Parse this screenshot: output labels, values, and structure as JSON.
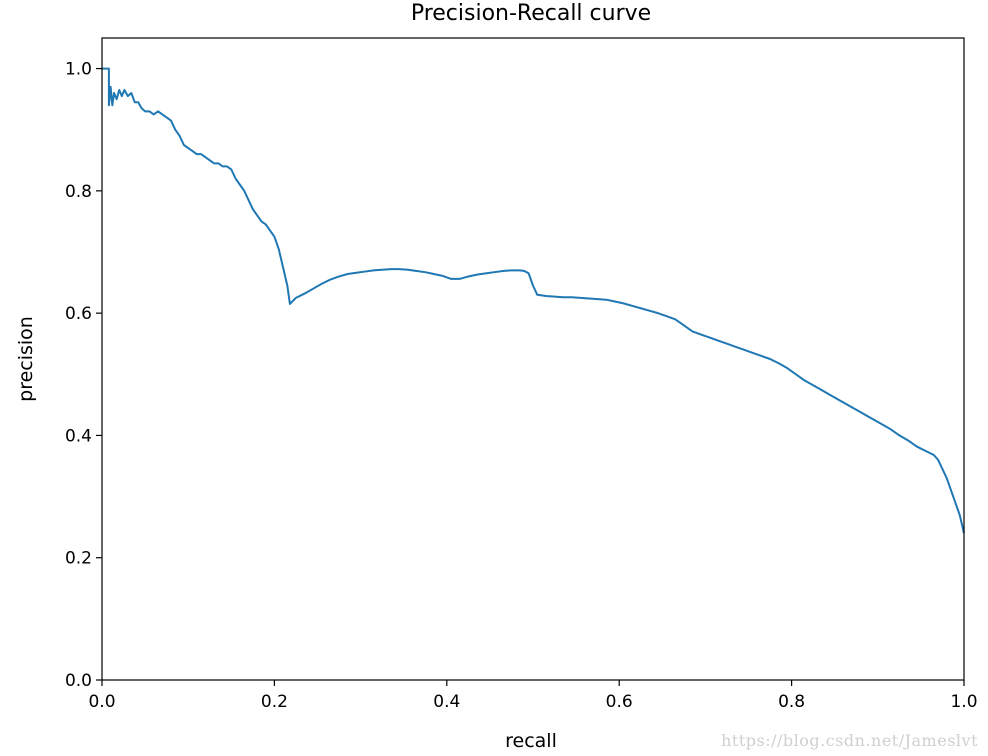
{
  "chart_data": {
    "type": "line",
    "title": "Precision-Recall curve",
    "xlabel": "recall",
    "ylabel": "precision",
    "xlim": [
      0.0,
      1.0
    ],
    "ylim": [
      0.0,
      1.05
    ],
    "xticks": [
      "0.0",
      "0.2",
      "0.4",
      "0.6",
      "0.8",
      "1.0"
    ],
    "yticks": [
      "0.0",
      "0.2",
      "0.4",
      "0.6",
      "0.8",
      "1.0"
    ],
    "grid": false,
    "line_color": "#1f77b4",
    "series": [
      {
        "x": [
          0.0,
          0.004,
          0.008,
          0.008,
          0.01,
          0.012,
          0.014,
          0.017,
          0.02,
          0.023,
          0.026,
          0.03,
          0.034,
          0.038,
          0.042,
          0.046,
          0.05,
          0.055,
          0.06,
          0.065,
          0.07,
          0.075,
          0.08,
          0.085,
          0.09,
          0.095,
          0.1,
          0.105,
          0.11,
          0.115,
          0.12,
          0.125,
          0.13,
          0.135,
          0.14,
          0.145,
          0.15,
          0.155,
          0.16,
          0.165,
          0.17,
          0.175,
          0.18,
          0.185,
          0.19,
          0.195,
          0.2,
          0.205,
          0.21,
          0.215,
          0.218,
          0.225,
          0.235,
          0.245,
          0.255,
          0.265,
          0.275,
          0.285,
          0.295,
          0.305,
          0.315,
          0.325,
          0.335,
          0.345,
          0.355,
          0.365,
          0.375,
          0.385,
          0.395,
          0.405,
          0.415,
          0.425,
          0.435,
          0.445,
          0.455,
          0.465,
          0.475,
          0.485,
          0.49,
          0.495,
          0.5,
          0.505,
          0.515,
          0.525,
          0.535,
          0.545,
          0.555,
          0.565,
          0.575,
          0.585,
          0.595,
          0.605,
          0.615,
          0.625,
          0.635,
          0.645,
          0.655,
          0.665,
          0.675,
          0.685,
          0.695,
          0.705,
          0.715,
          0.725,
          0.735,
          0.745,
          0.755,
          0.765,
          0.775,
          0.785,
          0.795,
          0.805,
          0.815,
          0.825,
          0.835,
          0.845,
          0.855,
          0.865,
          0.875,
          0.885,
          0.895,
          0.905,
          0.915,
          0.925,
          0.935,
          0.945,
          0.955,
          0.965,
          0.97,
          0.975,
          0.98,
          0.985,
          0.99,
          0.995,
          1.0
        ],
        "y": [
          1.0,
          1.0,
          1.0,
          0.94,
          0.97,
          0.94,
          0.96,
          0.95,
          0.965,
          0.955,
          0.965,
          0.955,
          0.96,
          0.945,
          0.945,
          0.935,
          0.93,
          0.93,
          0.925,
          0.93,
          0.925,
          0.92,
          0.915,
          0.9,
          0.89,
          0.875,
          0.87,
          0.865,
          0.86,
          0.86,
          0.855,
          0.85,
          0.845,
          0.845,
          0.84,
          0.84,
          0.835,
          0.82,
          0.81,
          0.8,
          0.785,
          0.77,
          0.76,
          0.75,
          0.745,
          0.735,
          0.725,
          0.705,
          0.675,
          0.645,
          0.615,
          0.625,
          0.632,
          0.64,
          0.648,
          0.655,
          0.66,
          0.664,
          0.666,
          0.668,
          0.67,
          0.671,
          0.672,
          0.672,
          0.671,
          0.669,
          0.667,
          0.664,
          0.661,
          0.656,
          0.656,
          0.66,
          0.663,
          0.665,
          0.667,
          0.669,
          0.67,
          0.67,
          0.669,
          0.665,
          0.645,
          0.63,
          0.628,
          0.627,
          0.626,
          0.626,
          0.625,
          0.624,
          0.623,
          0.622,
          0.619,
          0.616,
          0.612,
          0.608,
          0.604,
          0.6,
          0.595,
          0.59,
          0.58,
          0.57,
          0.565,
          0.56,
          0.555,
          0.55,
          0.545,
          0.54,
          0.535,
          0.53,
          0.525,
          0.518,
          0.51,
          0.5,
          0.49,
          0.482,
          0.474,
          0.466,
          0.458,
          0.45,
          0.442,
          0.434,
          0.426,
          0.418,
          0.41,
          0.4,
          0.392,
          0.382,
          0.375,
          0.368,
          0.36,
          0.345,
          0.33,
          0.31,
          0.29,
          0.27,
          0.24
        ]
      }
    ]
  },
  "watermark": "https://blog.csdn.net/Jameslvt"
}
